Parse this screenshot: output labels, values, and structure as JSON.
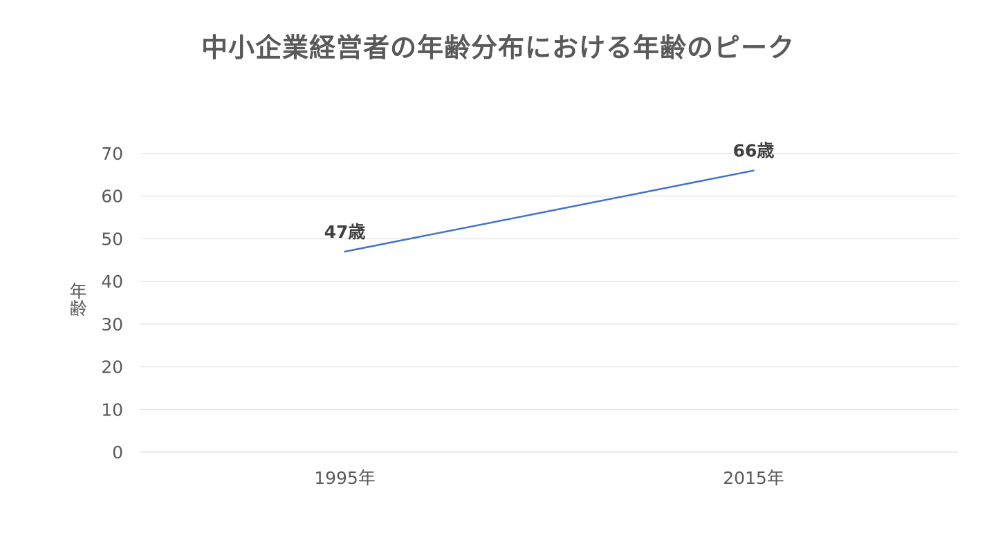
{
  "chart_data": {
    "type": "line",
    "title": "中小企業経営者の年齢分布における年齢のピーク",
    "xlabel": "",
    "ylabel": "年齢",
    "categories": [
      "1995年",
      "2015年"
    ],
    "series": [
      {
        "values": [
          47,
          66
        ],
        "data_labels": [
          "47歳",
          "66歳"
        ],
        "color": "#4472c4"
      }
    ],
    "ylim": [
      0,
      70
    ],
    "yticks": [
      0,
      10,
      20,
      30,
      40,
      50,
      60,
      70
    ],
    "grid": true,
    "legend": "none"
  }
}
